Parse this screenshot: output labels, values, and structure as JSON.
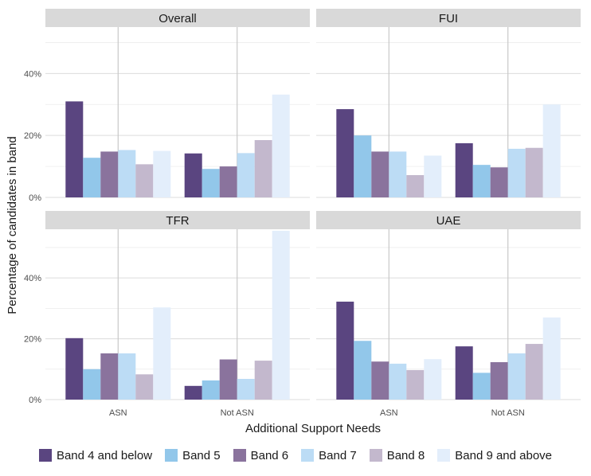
{
  "chart_data": {
    "type": "bar",
    "xlabel": "Additional Support Needs",
    "ylabel": "Percentage of candidates in band",
    "categories": [
      "ASN",
      "Not ASN"
    ],
    "ylim_top": [
      0,
      0.55
    ],
    "ylim_bottom": [
      0,
      0.56
    ],
    "yticks": [
      0,
      0.2,
      0.4
    ],
    "ytick_labels": [
      "0%",
      "20%",
      "40%"
    ],
    "grid": true,
    "legend_position": "bottom",
    "series_names": [
      "Band 4 and below",
      "Band 5",
      "Band 6",
      "Band 7",
      "Band 8",
      "Band 9 and above"
    ],
    "colors": [
      "#5a4580",
      "#92c7ea",
      "#8a739d",
      "#bcdcf5",
      "#c3b8cd",
      "#e3eefb"
    ],
    "panels": [
      {
        "title": "Overall",
        "values": {
          "ASN": [
            0.31,
            0.128,
            0.148,
            0.153,
            0.107,
            0.15
          ],
          "Not ASN": [
            0.142,
            0.092,
            0.1,
            0.143,
            0.185,
            0.332
          ]
        }
      },
      {
        "title": "FUI",
        "values": {
          "ASN": [
            0.285,
            0.2,
            0.148,
            0.148,
            0.072,
            0.135
          ],
          "Not ASN": [
            0.175,
            0.105,
            0.097,
            0.157,
            0.16,
            0.3
          ]
        }
      },
      {
        "title": "TFR",
        "values": {
          "ASN": [
            0.202,
            0.1,
            0.152,
            0.152,
            0.083,
            0.303
          ],
          "Not ASN": [
            0.045,
            0.063,
            0.132,
            0.068,
            0.128,
            0.555
          ]
        }
      },
      {
        "title": "UAE",
        "values": {
          "ASN": [
            0.322,
            0.193,
            0.125,
            0.118,
            0.097,
            0.133
          ],
          "Not ASN": [
            0.175,
            0.088,
            0.123,
            0.152,
            0.183,
            0.27
          ]
        }
      }
    ]
  }
}
